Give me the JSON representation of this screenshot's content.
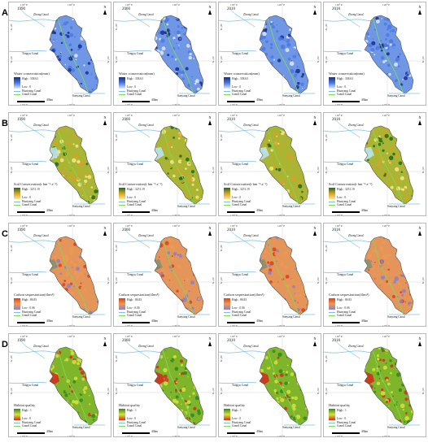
{
  "rows": [
    {
      "letter": "A",
      "legend_title": "Water conservation(mm)",
      "high_label": "High : 338.63",
      "low_label": "Low : 0",
      "colors": {
        "high": "#1a2e8c",
        "mid": "#4a78e0",
        "low": "#dfe9f8",
        "base": "#6f97e6"
      }
    },
    {
      "letter": "B",
      "legend_title": "Soil Conservation(t·hm⁻²·a⁻¹)",
      "high_label": "High : 3251.19",
      "low_label": "Low : 0",
      "colors": {
        "high": "#1f6b1f",
        "mid": "#d8a12a",
        "low": "#f6e98a",
        "base": "#a9b533"
      }
    },
    {
      "letter": "C",
      "legend_title": "Carbon sequestration(t/hm²)",
      "high_label": "High : 86.83",
      "low_label": "Low : 0.06",
      "colors": {
        "high": "#e04020",
        "mid": "#ee9a52",
        "low": "#8a7fd0",
        "base": "#e3955a"
      }
    },
    {
      "letter": "D",
      "legend_title": "Habitat quality",
      "high_label": "High : 1",
      "low_label": "Low : 0",
      "colors": {
        "high": "#2f8a22",
        "mid": "#d9e23a",
        "low": "#d32e1e",
        "base": "#7fb52a"
      }
    }
  ],
  "years": [
    "1990",
    "2000",
    "2010",
    "2018"
  ],
  "labels": {
    "place_top": "Zhong Canal",
    "place_left": "Tongyu Canal",
    "place_bottom": "Sanyang Canal",
    "canal_1": "Huaiyang Canal",
    "canal_2": "Grand Canal",
    "north": "N",
    "scale_unit": "40km",
    "lon_left": "118° E",
    "lon_right": "120° E",
    "lat_top": "34° N",
    "lat_mid": "33° N",
    "lat_bottom": "32° N"
  },
  "colors": {
    "river": "#7fbfe0",
    "grand_canal": "#7ed957",
    "outline": "#555555",
    "grid": "#cccccc"
  }
}
